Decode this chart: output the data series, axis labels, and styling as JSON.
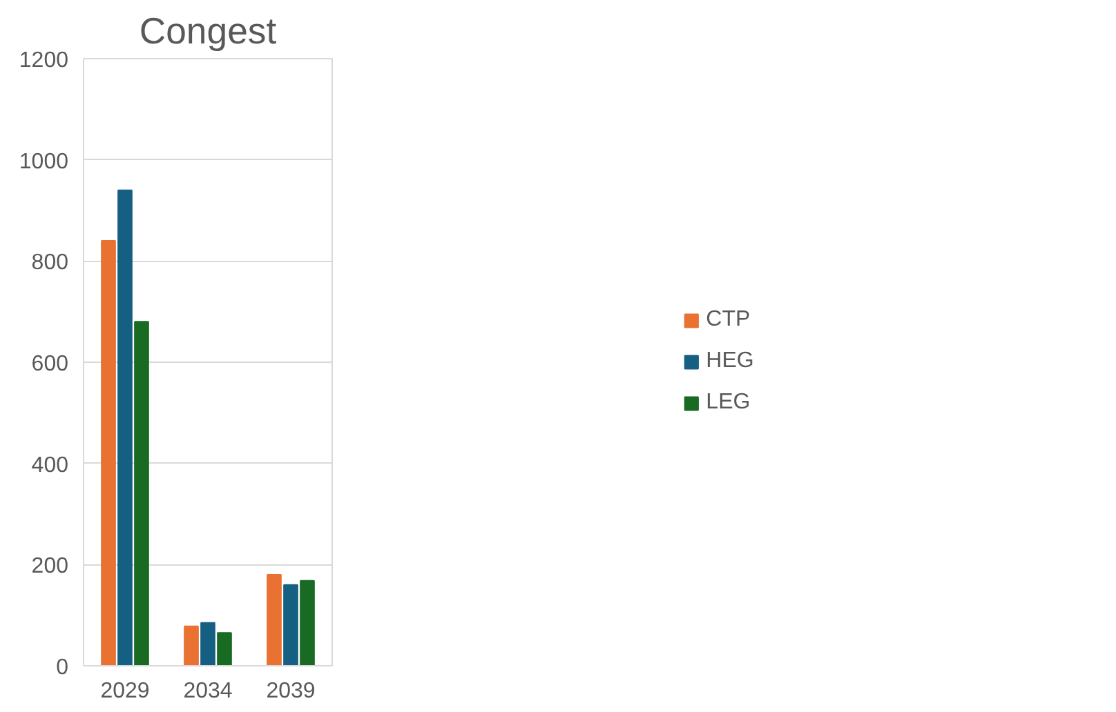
{
  "chart_data": {
    "type": "bar",
    "title": "Congest",
    "categories": [
      "2029",
      "2034",
      "2039"
    ],
    "series": [
      {
        "name": "CTP",
        "color": "#e97132",
        "values": [
          840,
          78,
          180
        ]
      },
      {
        "name": "HEG",
        "color": "#156082",
        "values": [
          940,
          85,
          160
        ]
      },
      {
        "name": "LEG",
        "color": "#196b24",
        "values": [
          680,
          65,
          168
        ]
      }
    ],
    "ylim": [
      0,
      1200
    ],
    "yticks": [
      0,
      200,
      400,
      600,
      800,
      1000,
      1200
    ],
    "grid": "y",
    "legend": "right"
  }
}
